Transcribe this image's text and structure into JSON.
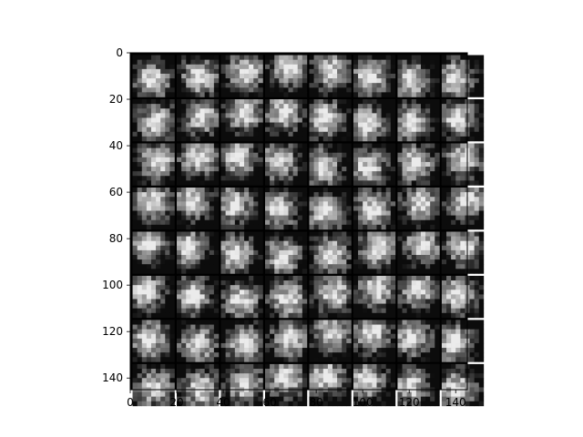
{
  "chart_data": {
    "type": "heatmap",
    "title": "",
    "xlabel": "",
    "ylabel": "",
    "description_grid": {
      "rows": 8,
      "cols": 8,
      "tile_size": 18,
      "gap": 1
    },
    "xlim": [
      0,
      145
    ],
    "ylim": [
      145,
      0
    ],
    "x_ticks": [
      0,
      20,
      40,
      60,
      80,
      100,
      120,
      140
    ],
    "y_ticks": [
      0,
      20,
      40,
      60,
      80,
      100,
      120,
      140
    ],
    "x_tick_labels": [
      "0",
      "20",
      "40",
      "60",
      "80",
      "100",
      "120",
      "140"
    ],
    "y_tick_labels": [
      "0",
      "20",
      "40",
      "60",
      "80",
      "100",
      "120",
      "140"
    ],
    "colormap": "gray",
    "grid": false
  },
  "colors": {
    "background": "#ffffff",
    "border": "#000000",
    "image_background": "#000000"
  }
}
